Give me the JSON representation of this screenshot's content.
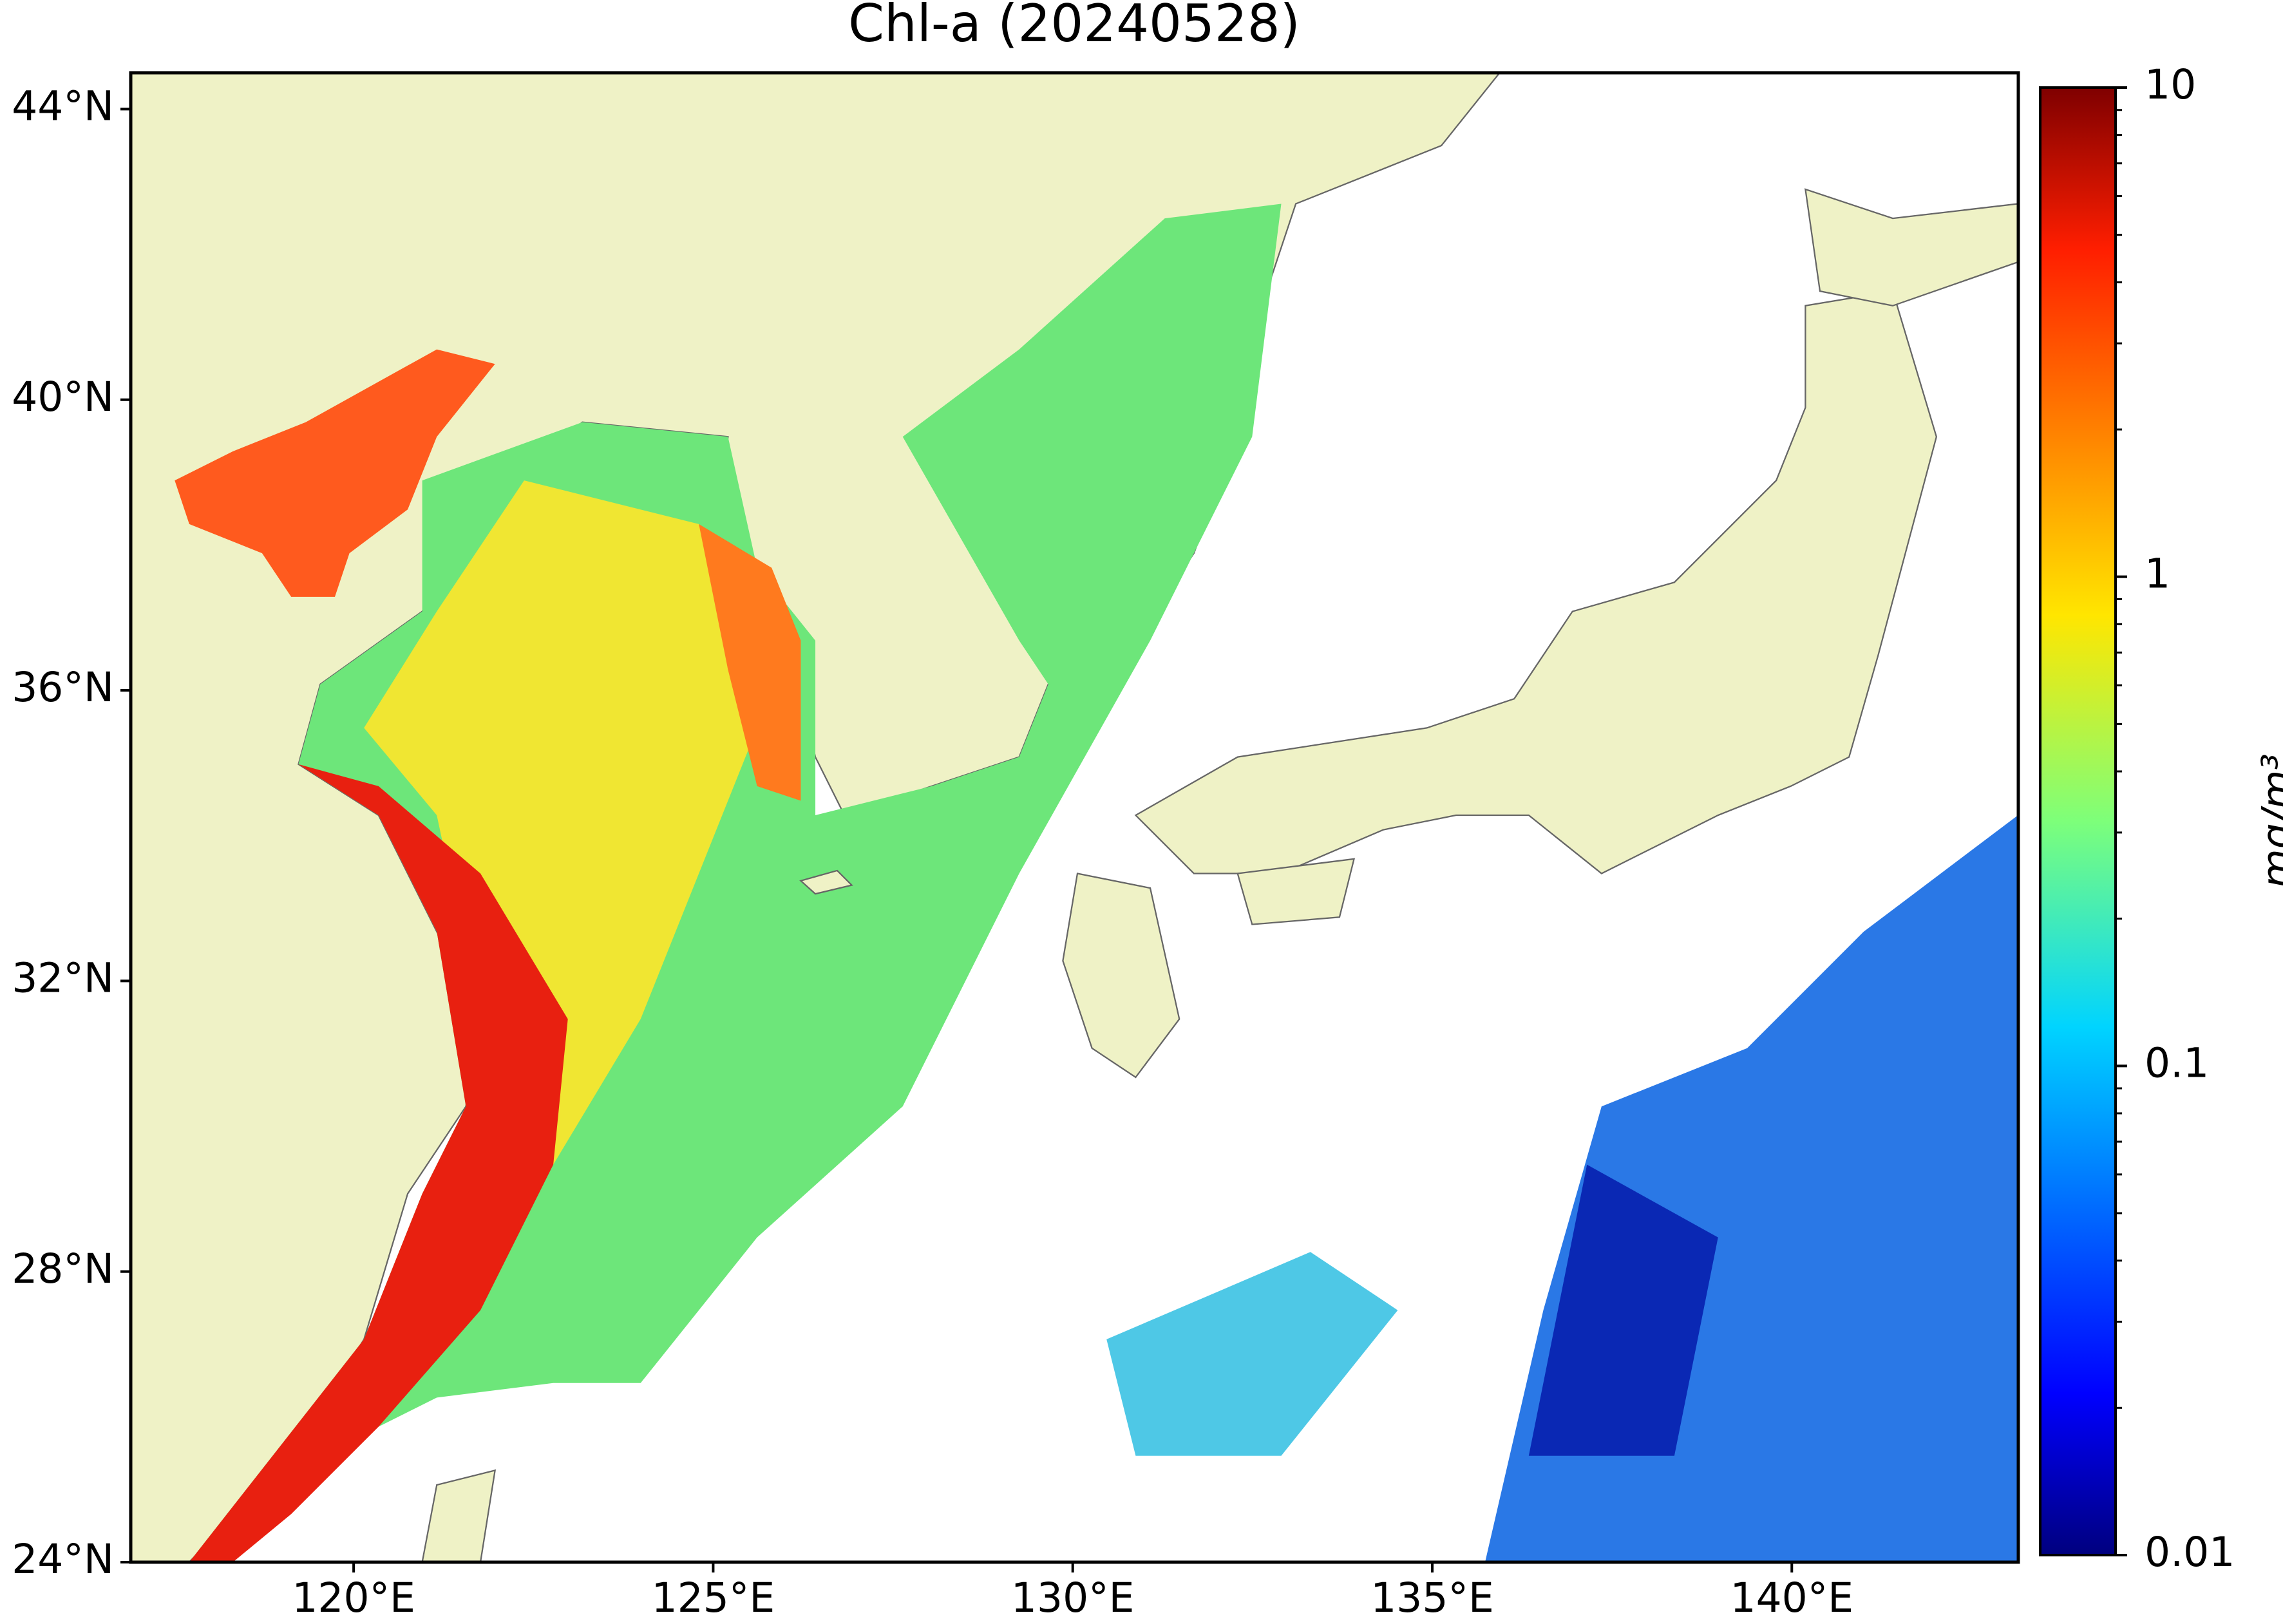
{
  "chart_data": {
    "type": "map",
    "title": "Chl-a (20240528)",
    "xlim": [
      116.9,
      143.15
    ],
    "ylim": [
      24,
      44.5
    ],
    "xticks": [
      {
        "value": 120,
        "label": "120°E"
      },
      {
        "value": 125,
        "label": "125°E"
      },
      {
        "value": 130,
        "label": "130°E"
      },
      {
        "value": 135,
        "label": "135°E"
      },
      {
        "value": 140,
        "label": "140°E"
      }
    ],
    "yticks": [
      {
        "value": 24,
        "label": "24°N"
      },
      {
        "value": 28,
        "label": "28°N"
      },
      {
        "value": 32,
        "label": "32°N"
      },
      {
        "value": 36,
        "label": "36°N"
      },
      {
        "value": 40,
        "label": "40°N"
      },
      {
        "value": 44,
        "label": "44°N"
      }
    ],
    "colorbar": {
      "label": "mg/m³",
      "scale": "log",
      "lim": [
        0.01,
        10
      ],
      "ticks": [
        0.01,
        0.1,
        1,
        10
      ]
    }
  }
}
